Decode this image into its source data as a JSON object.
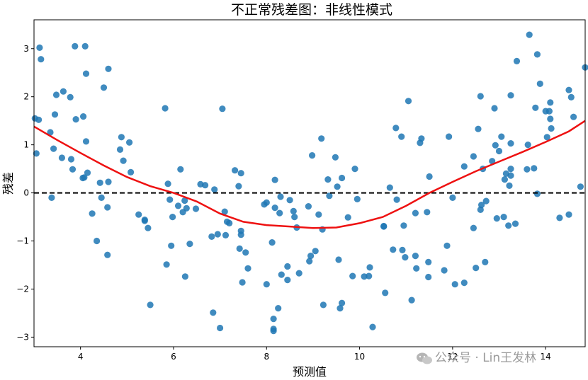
{
  "chart_data": {
    "type": "scatter",
    "title": "不正常残差图：非线性模式",
    "xlabel": "预测值",
    "ylabel": "残差",
    "xlim": [
      3.0,
      14.85
    ],
    "ylim": [
      -3.2,
      3.6
    ],
    "xticks": [
      4,
      6,
      8,
      10,
      12,
      14
    ],
    "yticks": [
      -3,
      -2,
      -1,
      0,
      1,
      2,
      3
    ],
    "grid": false,
    "reference_line": {
      "y": 0,
      "style": "dashed",
      "color": "#000000"
    },
    "scatter_color": "#1f77b4",
    "points": [
      [
        3.02,
        1.55
      ],
      [
        3.05,
        0.82
      ],
      [
        3.1,
        1.52
      ],
      [
        3.12,
        3.02
      ],
      [
        3.15,
        2.78
      ],
      [
        3.35,
        1.26
      ],
      [
        3.38,
        -0.1
      ],
      [
        3.42,
        0.92
      ],
      [
        3.45,
        1.63
      ],
      [
        3.48,
        2.04
      ],
      [
        3.6,
        0.73
      ],
      [
        3.63,
        2.11
      ],
      [
        3.78,
        1.99
      ],
      [
        3.8,
        0.7
      ],
      [
        3.83,
        0.49
      ],
      [
        3.88,
        3.05
      ],
      [
        3.9,
        1.53
      ],
      [
        4.05,
        0.31
      ],
      [
        4.06,
        1.59
      ],
      [
        4.08,
        0.32
      ],
      [
        4.1,
        3.05
      ],
      [
        4.12,
        1.07
      ],
      [
        4.12,
        2.48
      ],
      [
        4.15,
        0.42
      ],
      [
        4.25,
        -0.43
      ],
      [
        4.35,
        -1.0
      ],
      [
        4.42,
        0.21
      ],
      [
        4.45,
        -0.1
      ],
      [
        4.5,
        2.19
      ],
      [
        4.58,
        -0.3
      ],
      [
        4.6,
        0.23
      ],
      [
        4.6,
        2.58
      ],
      [
        4.58,
        -1.29
      ],
      [
        4.85,
        0.9
      ],
      [
        4.88,
        1.16
      ],
      [
        4.92,
        0.67
      ],
      [
        5.05,
        1.05
      ],
      [
        5.08,
        0.43
      ],
      [
        5.25,
        -0.45
      ],
      [
        5.38,
        -0.58
      ],
      [
        5.38,
        -0.56
      ],
      [
        5.45,
        -0.73
      ],
      [
        5.5,
        -2.33
      ],
      [
        5.82,
        1.76
      ],
      [
        5.85,
        -1.49
      ],
      [
        5.88,
        0.19
      ],
      [
        5.92,
        -0.14
      ],
      [
        5.95,
        -1.1
      ],
      [
        5.98,
        -0.5
      ],
      [
        6.1,
        -0.27
      ],
      [
        6.15,
        0.49
      ],
      [
        6.2,
        -0.4
      ],
      [
        6.24,
        -0.16
      ],
      [
        6.25,
        -1.74
      ],
      [
        6.28,
        -0.32
      ],
      [
        6.35,
        -1.06
      ],
      [
        6.48,
        -0.33
      ],
      [
        6.58,
        0.18
      ],
      [
        6.68,
        0.16
      ],
      [
        6.82,
        -0.91
      ],
      [
        6.85,
        -2.49
      ],
      [
        6.88,
        0.07
      ],
      [
        6.95,
        -0.86
      ],
      [
        7.0,
        -2.81
      ],
      [
        7.05,
        1.75
      ],
      [
        7.1,
        -0.39
      ],
      [
        7.12,
        -0.88
      ],
      [
        7.15,
        -0.6
      ],
      [
        7.2,
        -0.63
      ],
      [
        7.32,
        0.47
      ],
      [
        7.4,
        0.14
      ],
      [
        7.42,
        -1.16
      ],
      [
        7.45,
        0.41
      ],
      [
        7.45,
        -0.79
      ],
      [
        7.45,
        -0.87
      ],
      [
        7.48,
        -1.86
      ],
      [
        7.55,
        -1.24
      ],
      [
        7.6,
        -1.57
      ],
      [
        7.95,
        -0.24
      ],
      [
        8.0,
        -0.2
      ],
      [
        8.0,
        -1.9
      ],
      [
        8.12,
        -1.03
      ],
      [
        8.15,
        -2.62
      ],
      [
        8.15,
        -2.83
      ],
      [
        8.15,
        -2.87
      ],
      [
        8.18,
        0.27
      ],
      [
        8.18,
        -0.31
      ],
      [
        8.25,
        -2.4
      ],
      [
        8.28,
        -0.42
      ],
      [
        8.3,
        -0.08
      ],
      [
        8.32,
        -1.7
      ],
      [
        8.45,
        -1.53
      ],
      [
        8.45,
        -1.81
      ],
      [
        8.5,
        -0.15
      ],
      [
        8.58,
        -0.38
      ],
      [
        8.6,
        -0.5
      ],
      [
        8.65,
        -0.72
      ],
      [
        8.7,
        -1.67
      ],
      [
        8.9,
        -0.28
      ],
      [
        8.92,
        -1.42
      ],
      [
        8.95,
        -1.31
      ],
      [
        8.98,
        0.78
      ],
      [
        9.05,
        -1.21
      ],
      [
        9.12,
        -0.45
      ],
      [
        9.18,
        1.13
      ],
      [
        9.2,
        -0.76
      ],
      [
        9.22,
        -2.33
      ],
      [
        9.32,
        0.28
      ],
      [
        9.35,
        -0.06
      ],
      [
        9.48,
        0.74
      ],
      [
        9.52,
        0.13
      ],
      [
        9.55,
        -1.39
      ],
      [
        9.58,
        -2.4
      ],
      [
        9.62,
        0.31
      ],
      [
        9.62,
        -2.29
      ],
      [
        9.75,
        -0.51
      ],
      [
        9.85,
        -1.73
      ],
      [
        9.9,
        0.5
      ],
      [
        9.95,
        -0.13
      ],
      [
        10.1,
        -1.74
      ],
      [
        10.2,
        -1.73
      ],
      [
        10.22,
        -1.55
      ],
      [
        10.28,
        -2.79
      ],
      [
        10.52,
        -0.69
      ],
      [
        10.52,
        -0.7
      ],
      [
        10.55,
        -2.08
      ],
      [
        10.65,
        0.11
      ],
      [
        10.72,
        -1.18
      ],
      [
        10.78,
        1.35
      ],
      [
        10.8,
        -0.14
      ],
      [
        10.9,
        1.17
      ],
      [
        10.92,
        -1.19
      ],
      [
        10.95,
        -0.68
      ],
      [
        10.98,
        -1.34
      ],
      [
        11.05,
        1.91
      ],
      [
        11.12,
        -2.23
      ],
      [
        11.2,
        -0.42
      ],
      [
        11.2,
        -1.31
      ],
      [
        11.22,
        -1.57
      ],
      [
        11.3,
        1.04
      ],
      [
        11.33,
        1.13
      ],
      [
        11.45,
        -0.4
      ],
      [
        11.48,
        -1.44
      ],
      [
        11.48,
        -1.75
      ],
      [
        11.5,
        0.34
      ],
      [
        11.82,
        -1.61
      ],
      [
        11.88,
        -1.1
      ],
      [
        11.92,
        1.17
      ],
      [
        12.0,
        -0.1
      ],
      [
        12.05,
        -1.9
      ],
      [
        12.25,
        0.55
      ],
      [
        12.25,
        -1.87
      ],
      [
        12.45,
        0.76
      ],
      [
        12.45,
        -0.73
      ],
      [
        12.5,
        -1.56
      ],
      [
        12.55,
        1.33
      ],
      [
        12.6,
        2.01
      ],
      [
        12.6,
        -0.35
      ],
      [
        12.62,
        -0.25
      ],
      [
        12.65,
        0.5
      ],
      [
        12.7,
        -1.44
      ],
      [
        12.72,
        -0.17
      ],
      [
        12.85,
        0.66
      ],
      [
        12.9,
        1.76
      ],
      [
        12.92,
        0.99
      ],
      [
        12.95,
        -0.53
      ],
      [
        13.0,
        0.87
      ],
      [
        13.05,
        1.17
      ],
      [
        13.12,
        0.28
      ],
      [
        13.15,
        0.4
      ],
      [
        13.2,
        -0.68
      ],
      [
        13.22,
        0.15
      ],
      [
        13.25,
        1.03
      ],
      [
        13.25,
        2.03
      ],
      [
        13.25,
        0.36
      ],
      [
        13.25,
        0.5
      ],
      [
        13.35,
        -0.64
      ],
      [
        13.38,
        2.74
      ],
      [
        13.6,
        0.49
      ],
      [
        13.62,
        1.0
      ],
      [
        13.65,
        3.29
      ],
      [
        13.75,
        0.51
      ],
      [
        13.78,
        1.77
      ],
      [
        13.82,
        2.88
      ],
      [
        13.82,
        -0.02
      ],
      [
        13.88,
        2.27
      ],
      [
        14.0,
        1.7
      ],
      [
        14.03,
        1.16
      ],
      [
        14.08,
        1.7
      ],
      [
        14.1,
        1.54
      ],
      [
        14.1,
        1.88
      ],
      [
        14.12,
        1.34
      ],
      [
        14.3,
        -0.52
      ],
      [
        14.5,
        2.14
      ],
      [
        14.5,
        -0.45
      ],
      [
        14.55,
        1.99
      ],
      [
        14.6,
        1.58
      ],
      [
        14.75,
        0.13
      ],
      [
        14.85,
        2.61
      ],
      [
        13.1,
        -0.5
      ]
    ],
    "fit_line": {
      "color": "#ee1111",
      "x": [
        3.0,
        3.5,
        4.0,
        4.5,
        5.0,
        5.5,
        6.0,
        6.5,
        7.0,
        7.5,
        8.0,
        8.5,
        9.0,
        9.5,
        10.0,
        10.5,
        11.0,
        11.5,
        12.0,
        12.5,
        13.0,
        13.5,
        14.0,
        14.5,
        14.85
      ],
      "y": [
        1.38,
        1.1,
        0.83,
        0.57,
        0.33,
        0.14,
        0.0,
        -0.18,
        -0.43,
        -0.6,
        -0.67,
        -0.7,
        -0.73,
        -0.72,
        -0.63,
        -0.5,
        -0.27,
        0.0,
        0.23,
        0.45,
        0.65,
        0.85,
        1.06,
        1.28,
        1.5
      ]
    }
  },
  "watermark": {
    "text": "公众号 · Lin王发林"
  }
}
